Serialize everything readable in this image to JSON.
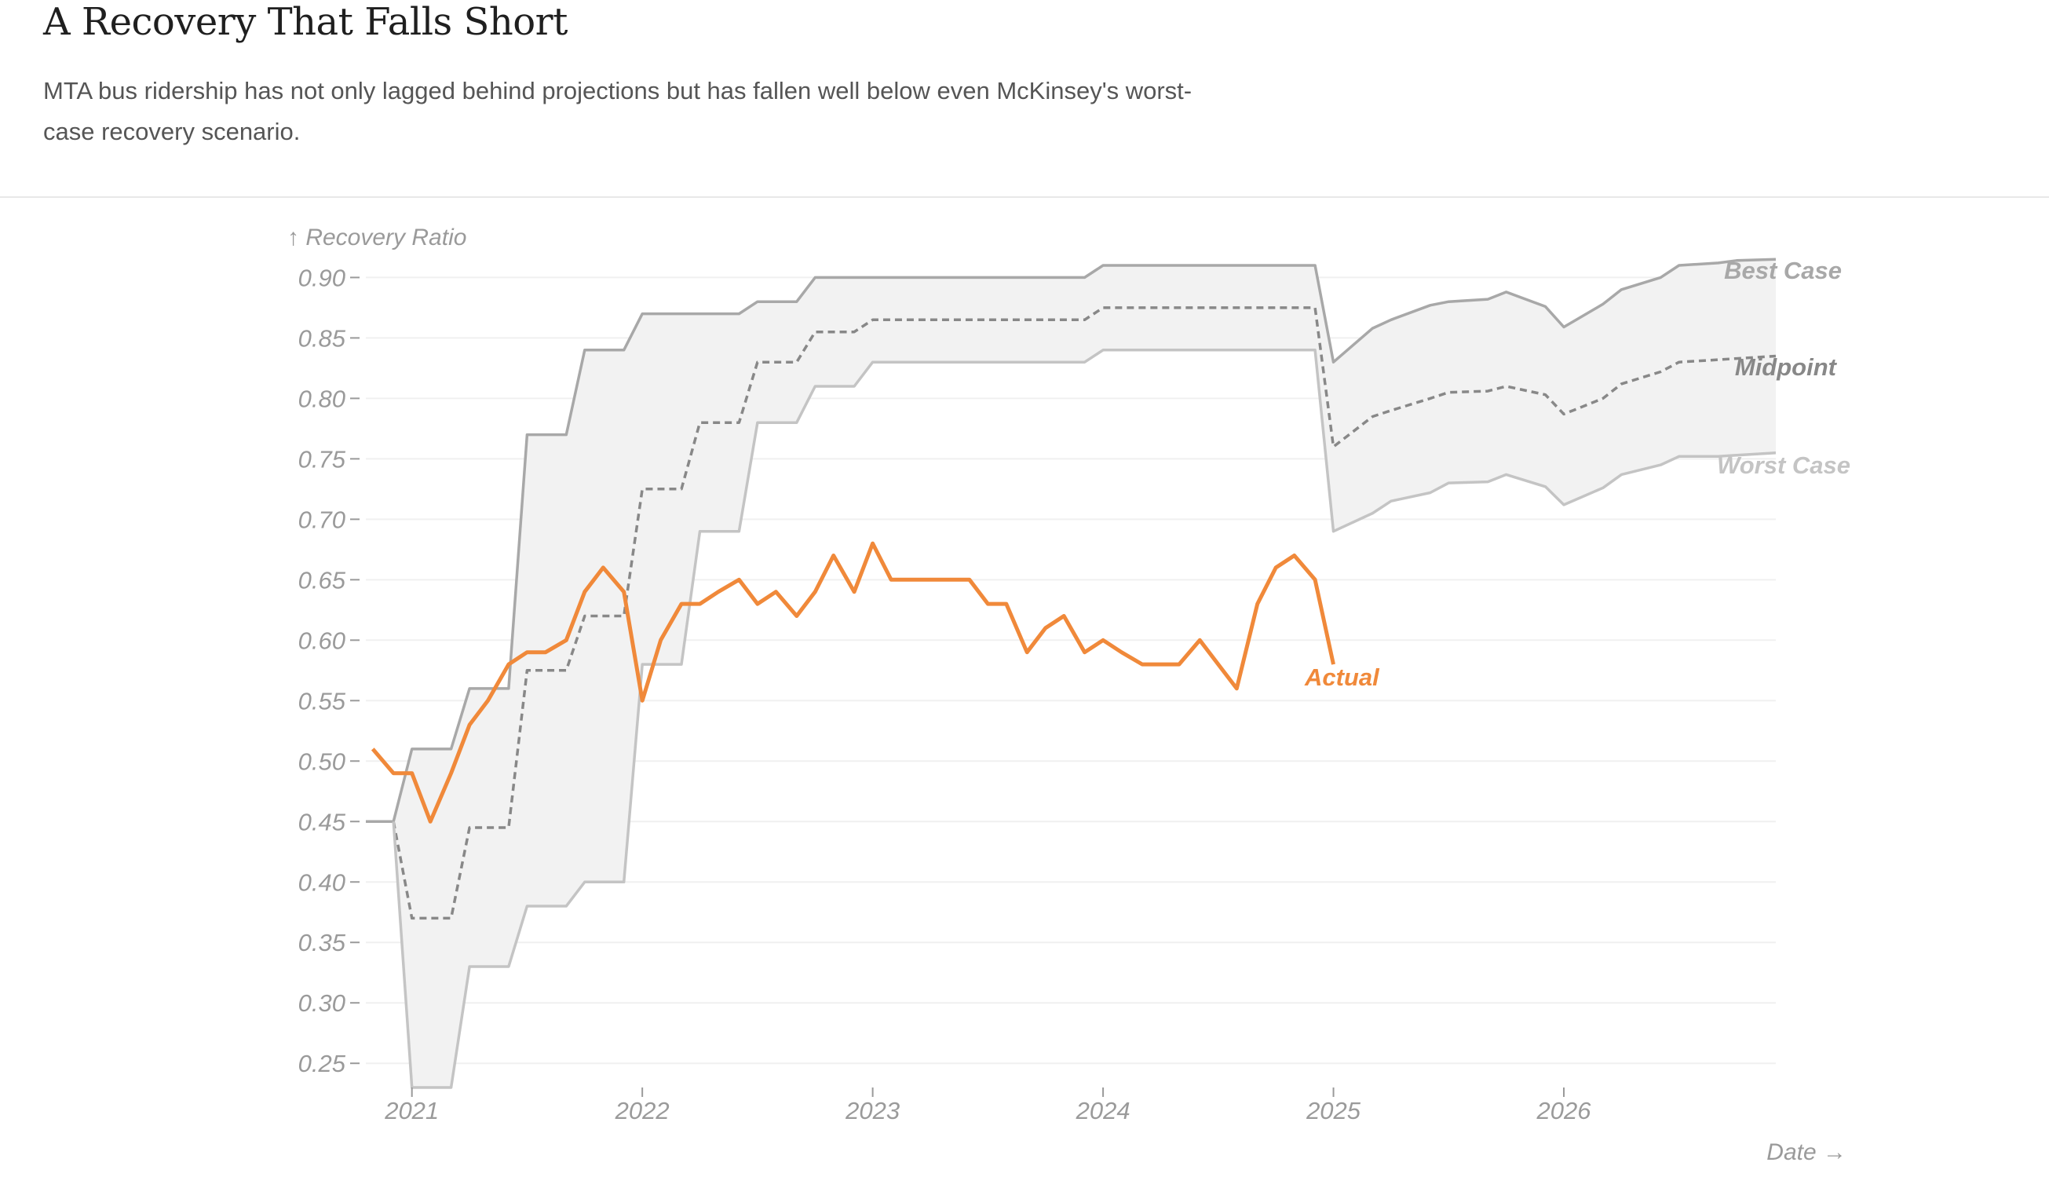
{
  "title": "A Recovery That Falls Short",
  "subtitle": "MTA bus ridership has not only lagged behind projections but has fallen well below even McKinsey's worst-case recovery scenario.",
  "chart_data": {
    "type": "line",
    "ylabel": "↑ Recovery Ratio",
    "xlabel": "Date →",
    "ylim": [
      0.23,
      0.91
    ],
    "xlim": [
      2020.8,
      2026.92
    ],
    "y_ticks": [
      "0.25",
      "0.30",
      "0.35",
      "0.40",
      "0.45",
      "0.50",
      "0.55",
      "0.60",
      "0.65",
      "0.70",
      "0.75",
      "0.80",
      "0.85",
      "0.90"
    ],
    "y_tick_values": [
      0.25,
      0.3,
      0.35,
      0.4,
      0.45,
      0.5,
      0.55,
      0.6,
      0.65,
      0.7,
      0.75,
      0.8,
      0.85,
      0.9
    ],
    "x_ticks": [
      "2021",
      "2022",
      "2023",
      "2024",
      "2025",
      "2026"
    ],
    "x_tick_values": [
      2021,
      2022,
      2023,
      2024,
      2025,
      2026
    ],
    "grid": true,
    "colors": {
      "band": "#f2f2f2",
      "best": "#a8a8a8",
      "midpoint": "#888888",
      "worst": "#c4c4c4",
      "actual": "#f0893a",
      "grid": "#f0f0f0"
    },
    "series": [
      {
        "name": "Best Case",
        "x": [
          2020.8,
          2020.92,
          2021.0,
          2021.17,
          2021.25,
          2021.42,
          2021.5,
          2021.67,
          2021.75,
          2021.92,
          2022.0,
          2022.17,
          2022.25,
          2022.42,
          2022.5,
          2022.67,
          2022.75,
          2022.92,
          2023.0,
          2023.17,
          2023.25,
          2023.42,
          2023.5,
          2023.67,
          2023.75,
          2023.92,
          2024.0,
          2024.17,
          2024.25,
          2024.42,
          2024.5,
          2024.67,
          2024.75,
          2024.92,
          2025.0,
          2025.17,
          2025.25,
          2025.42,
          2025.5,
          2025.67,
          2025.75,
          2025.92,
          2026.0,
          2026.17,
          2026.25,
          2026.42,
          2026.5,
          2026.67,
          2026.75,
          2026.92
        ],
        "values": [
          0.45,
          0.45,
          0.51,
          0.51,
          0.56,
          0.56,
          0.77,
          0.77,
          0.84,
          0.84,
          0.87,
          0.87,
          0.87,
          0.87,
          0.88,
          0.88,
          0.9,
          0.9,
          0.9,
          0.9,
          0.9,
          0.9,
          0.9,
          0.9,
          0.9,
          0.9,
          0.91,
          0.91,
          0.91,
          0.91,
          0.91,
          0.91,
          0.91,
          0.91,
          0.83,
          0.858,
          0.865,
          0.877,
          0.88,
          0.882,
          0.888,
          0.876,
          0.859,
          0.878,
          0.89,
          0.9,
          0.91,
          0.912,
          0.914,
          0.915
        ]
      },
      {
        "name": "Midpoint",
        "x": [
          2020.92,
          2021.0,
          2021.17,
          2021.25,
          2021.42,
          2021.5,
          2021.67,
          2021.75,
          2021.92,
          2022.0,
          2022.17,
          2022.25,
          2022.42,
          2022.5,
          2022.67,
          2022.75,
          2022.92,
          2023.0,
          2023.17,
          2023.25,
          2023.42,
          2023.5,
          2023.67,
          2023.75,
          2023.92,
          2024.0,
          2024.17,
          2024.25,
          2024.42,
          2024.5,
          2024.67,
          2024.75,
          2024.92,
          2025.0,
          2025.17,
          2025.25,
          2025.42,
          2025.5,
          2025.67,
          2025.75,
          2025.92,
          2026.0,
          2026.17,
          2026.25,
          2026.42,
          2026.5,
          2026.67,
          2026.75,
          2026.92
        ],
        "values": [
          0.45,
          0.37,
          0.37,
          0.445,
          0.445,
          0.575,
          0.575,
          0.62,
          0.62,
          0.725,
          0.725,
          0.78,
          0.78,
          0.83,
          0.83,
          0.855,
          0.855,
          0.865,
          0.865,
          0.865,
          0.865,
          0.865,
          0.865,
          0.865,
          0.865,
          0.875,
          0.875,
          0.875,
          0.875,
          0.875,
          0.875,
          0.875,
          0.875,
          0.76,
          0.785,
          0.79,
          0.8,
          0.805,
          0.806,
          0.81,
          0.803,
          0.787,
          0.8,
          0.812,
          0.822,
          0.83,
          0.832,
          0.833,
          0.835
        ]
      },
      {
        "name": "Worst Case",
        "x": [
          2020.92,
          2021.0,
          2021.17,
          2021.25,
          2021.42,
          2021.5,
          2021.67,
          2021.75,
          2021.92,
          2022.0,
          2022.17,
          2022.25,
          2022.42,
          2022.5,
          2022.67,
          2022.75,
          2022.92,
          2023.0,
          2023.17,
          2023.25,
          2023.42,
          2023.5,
          2023.67,
          2023.75,
          2023.92,
          2024.0,
          2024.17,
          2024.25,
          2024.42,
          2024.5,
          2024.67,
          2024.75,
          2024.92,
          2025.0,
          2025.17,
          2025.25,
          2025.42,
          2025.5,
          2025.67,
          2025.75,
          2025.92,
          2026.0,
          2026.17,
          2026.25,
          2026.42,
          2026.5,
          2026.67,
          2026.75,
          2026.92
        ],
        "values": [
          0.45,
          0.23,
          0.23,
          0.33,
          0.33,
          0.38,
          0.38,
          0.4,
          0.4,
          0.58,
          0.58,
          0.69,
          0.69,
          0.78,
          0.78,
          0.81,
          0.81,
          0.83,
          0.83,
          0.83,
          0.83,
          0.83,
          0.83,
          0.83,
          0.83,
          0.84,
          0.84,
          0.84,
          0.84,
          0.84,
          0.84,
          0.84,
          0.84,
          0.69,
          0.705,
          0.715,
          0.722,
          0.73,
          0.731,
          0.737,
          0.727,
          0.712,
          0.726,
          0.737,
          0.745,
          0.752,
          0.752,
          0.753,
          0.755
        ]
      },
      {
        "name": "Actual",
        "x": [
          2020.83,
          2020.92,
          2021.0,
          2021.08,
          2021.17,
          2021.25,
          2021.33,
          2021.42,
          2021.5,
          2021.58,
          2021.67,
          2021.75,
          2021.83,
          2021.92,
          2022.0,
          2022.08,
          2022.17,
          2022.25,
          2022.33,
          2022.42,
          2022.5,
          2022.58,
          2022.67,
          2022.75,
          2022.83,
          2022.92,
          2023.0,
          2023.08,
          2023.17,
          2023.25,
          2023.33,
          2023.42,
          2023.5,
          2023.58,
          2023.67,
          2023.75,
          2023.83,
          2023.92,
          2024.0,
          2024.08,
          2024.17,
          2024.25,
          2024.33,
          2024.42,
          2024.5,
          2024.58,
          2024.67,
          2024.75,
          2024.83,
          2024.92,
          2025.0
        ],
        "values": [
          0.51,
          0.49,
          0.49,
          0.45,
          0.49,
          0.53,
          0.55,
          0.58,
          0.59,
          0.59,
          0.6,
          0.64,
          0.66,
          0.64,
          0.55,
          0.6,
          0.63,
          0.63,
          0.64,
          0.65,
          0.63,
          0.64,
          0.62,
          0.64,
          0.67,
          0.64,
          0.68,
          0.65,
          0.65,
          0.65,
          0.65,
          0.65,
          0.63,
          0.63,
          0.59,
          0.61,
          0.62,
          0.59,
          0.6,
          0.59,
          0.58,
          0.58,
          0.58,
          0.6,
          0.58,
          0.56,
          0.63,
          0.66,
          0.67,
          0.65,
          0.58
        ]
      }
    ]
  }
}
